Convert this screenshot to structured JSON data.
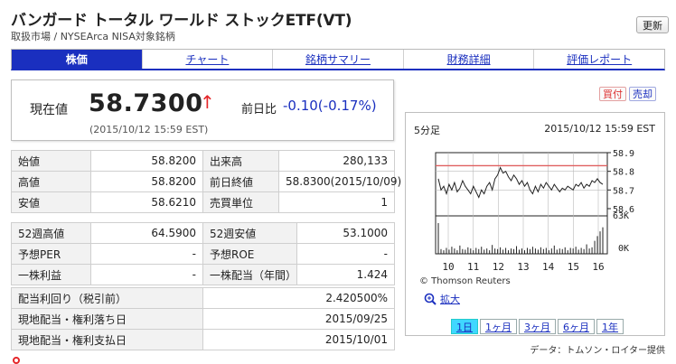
{
  "header": {
    "title": "バンガード トータル ワールド ストックETF(VT)",
    "subtitle": "取扱市場 / NYSEArca NISA対象銘柄",
    "refresh_label": "更新"
  },
  "tabs": [
    {
      "label": "株価",
      "active": true
    },
    {
      "label": "チャート",
      "active": false
    },
    {
      "label": "銘柄サマリー",
      "active": false
    },
    {
      "label": "財務詳細",
      "active": false
    },
    {
      "label": "評価レポート",
      "active": false
    }
  ],
  "price": {
    "label": "現在値",
    "value": "58.7300",
    "arrow": "↑",
    "change_label": "前日比",
    "change": "-0.10(-0.17%)",
    "datetime": "(2015/10/12 15:59 EST)"
  },
  "trade_buttons": {
    "buy": "買付",
    "sell": "売却"
  },
  "table1": [
    {
      "k1": "始値",
      "v1": "58.8200",
      "k2": "出来高",
      "v2": "280,133"
    },
    {
      "k1": "高値",
      "v1": "58.8200",
      "k2": "前日終値",
      "v2": "58.8300(2015/10/09)"
    },
    {
      "k1": "安値",
      "v1": "58.6210",
      "k2": "売買単位",
      "v2": "1"
    }
  ],
  "table2": [
    {
      "k1": "52週高値",
      "v1": "64.5900",
      "k2": "52週安値",
      "v2": "53.1000"
    },
    {
      "k1": "予想PER",
      "v1": "-",
      "k2": "予想ROE",
      "v2": "-"
    },
    {
      "k1": "一株利益",
      "v1": "-",
      "k2": "一株配当（年間）",
      "v2": "1.424"
    }
  ],
  "table3": [
    {
      "k": "配当利回り（税引前）",
      "v": "2.420500%"
    },
    {
      "k": "現地配当・権利落ち日",
      "v": "2015/09/25"
    },
    {
      "k": "現地配当・権利支払日",
      "v": "2015/10/01"
    }
  ],
  "chart": {
    "interval": "5分足",
    "datetime": "2015/10/12 15:59 EST",
    "copyright": "© Thomson Reuters",
    "zoom_label": "拡大",
    "ranges": [
      {
        "label": "1日",
        "active": true
      },
      {
        "label": "1ヶ月",
        "active": false
      },
      {
        "label": "3ヶ月",
        "active": false
      },
      {
        "label": "6ヶ月",
        "active": false
      },
      {
        "label": "1年",
        "active": false
      }
    ],
    "data_source": "データ：トムソン・ロイター提供"
  },
  "chart_data": {
    "type": "line",
    "price_ticks": [
      "58.9",
      "58.8",
      "58.7",
      "58.6"
    ],
    "price_ylim": [
      58.6,
      58.9
    ],
    "reference_line": 58.83,
    "volume_ticks": [
      "63K",
      "0K"
    ],
    "x_ticks": [
      "10",
      "11",
      "12",
      "13",
      "14",
      "15",
      "16"
    ],
    "price_series": [
      58.76,
      58.7,
      58.72,
      58.68,
      58.73,
      58.7,
      58.74,
      58.69,
      58.71,
      58.75,
      58.72,
      58.7,
      58.68,
      58.72,
      58.69,
      58.66,
      58.7,
      58.68,
      58.72,
      58.74,
      58.7,
      58.76,
      58.78,
      58.82,
      58.79,
      58.8,
      58.77,
      58.75,
      58.78,
      58.76,
      58.73,
      58.75,
      58.72,
      58.74,
      58.7,
      58.68,
      58.72,
      58.69,
      58.73,
      58.71,
      58.74,
      58.72,
      58.7,
      58.73,
      58.71,
      58.69,
      58.71,
      58.7,
      58.72,
      58.71,
      58.7,
      58.73,
      58.72,
      58.74,
      58.71,
      58.73,
      58.72,
      58.75,
      58.74,
      58.76,
      58.74,
      58.73
    ],
    "volume_series": [
      52,
      8,
      6,
      10,
      7,
      12,
      9,
      6,
      14,
      8,
      7,
      11,
      9,
      6,
      10,
      8,
      12,
      7,
      9,
      6,
      15,
      9,
      8,
      11,
      7,
      10,
      6,
      9,
      8,
      13,
      7,
      9,
      6,
      10,
      8,
      12,
      9,
      7,
      11,
      8,
      10,
      6,
      9,
      14,
      7,
      9,
      8,
      11,
      6,
      10,
      9,
      12,
      7,
      10,
      8,
      16,
      9,
      11,
      22,
      30,
      38,
      45
    ]
  }
}
